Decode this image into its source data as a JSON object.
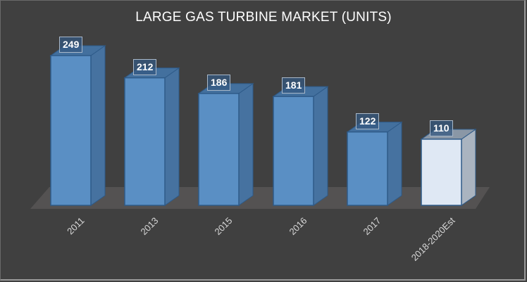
{
  "chart_data": {
    "type": "bar",
    "style": "3d-column",
    "title": "LARGE GAS TURBINE MARKET (UNITS)",
    "xlabel": "",
    "ylabel": "",
    "categories": [
      "2011",
      "2013",
      "2015",
      "2016",
      "2017",
      "2018-2020Est"
    ],
    "values": [
      249,
      212,
      186,
      181,
      122,
      110
    ],
    "data_labels": [
      "249",
      "212",
      "186",
      "181",
      "122",
      "110"
    ],
    "grid": false,
    "legend": "none",
    "colors": {
      "background": "#404040",
      "actual_bar_front": "#5a8fc4",
      "actual_bar_side": "#4672a0",
      "actual_bar_top": "#43709e",
      "estimate_bar_front": "#dfe8f4",
      "estimate_bar_side": "#aab4c0",
      "estimate_bar_top": "#8a97a6",
      "floor": "#545252",
      "title": "#ffffff",
      "axis_label": "#d9d9d9"
    },
    "highlighted_category": "2018-2020Est"
  }
}
